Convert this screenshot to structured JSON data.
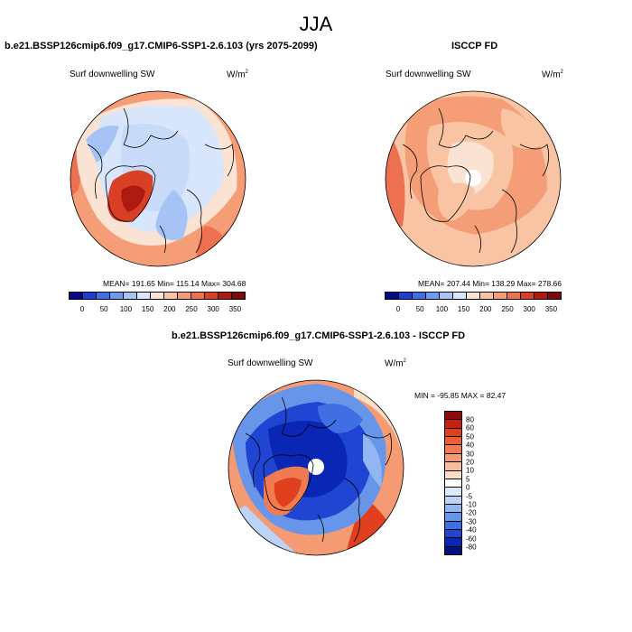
{
  "season": "JJA",
  "panels": {
    "model": {
      "title": "b.e21.BSSP126cmip6.f09_g17.CMIP6-SSP1-2.6.103 (yrs 2075-2099)",
      "variable": "Surf downwelling SW",
      "unit_base": "W/m",
      "unit_exp": "2",
      "stats": "MEAN= 191.65  Min= 115.14  Max= 304.68"
    },
    "obs": {
      "title": "ISCCP FD",
      "variable": "Surf downwelling SW",
      "unit_base": "W/m",
      "unit_exp": "2",
      "stats": "MEAN= 207.44  Min= 138.29  Max= 278.66"
    },
    "diff": {
      "title": "b.e21.BSSP126cmip6.f09_g17.CMIP6-SSP1-2.6.103 - ISCCP FD",
      "variable": "Surf downwelling SW",
      "unit_base": "W/m",
      "unit_exp": "2",
      "stats": "MIN = -95.85 MAX =  82.47"
    }
  },
  "colorbar_abs": {
    "ticks": [
      "0",
      "50",
      "100",
      "150",
      "200",
      "250",
      "300",
      "350"
    ],
    "colors": [
      "#08088a",
      "#1f3fcf",
      "#3d6fe6",
      "#6e9af0",
      "#a5c3f5",
      "#d7e6fa",
      "#fbe3d3",
      "#f8c4a4",
      "#f49d76",
      "#ed7050",
      "#d83f24",
      "#ad1a10",
      "#7c0a0a"
    ]
  },
  "colorbar_diff": {
    "ticks": [
      "80",
      "60",
      "50",
      "40",
      "30",
      "20",
      "10",
      "5",
      "0",
      "-5",
      "-10",
      "-20",
      "-30",
      "-40",
      "-60",
      "-80"
    ],
    "colors": [
      "#8b0a0a",
      "#c8200f",
      "#e0401e",
      "#ea5e36",
      "#f07b52",
      "#f49b74",
      "#f8bd9c",
      "#fbddc8",
      "#ffffff",
      "#dde9fa",
      "#bcd3f6",
      "#92b6f1",
      "#6795ea",
      "#3f6fe2",
      "#1f45d2",
      "#0a26b4",
      "#05107a"
    ]
  }
}
